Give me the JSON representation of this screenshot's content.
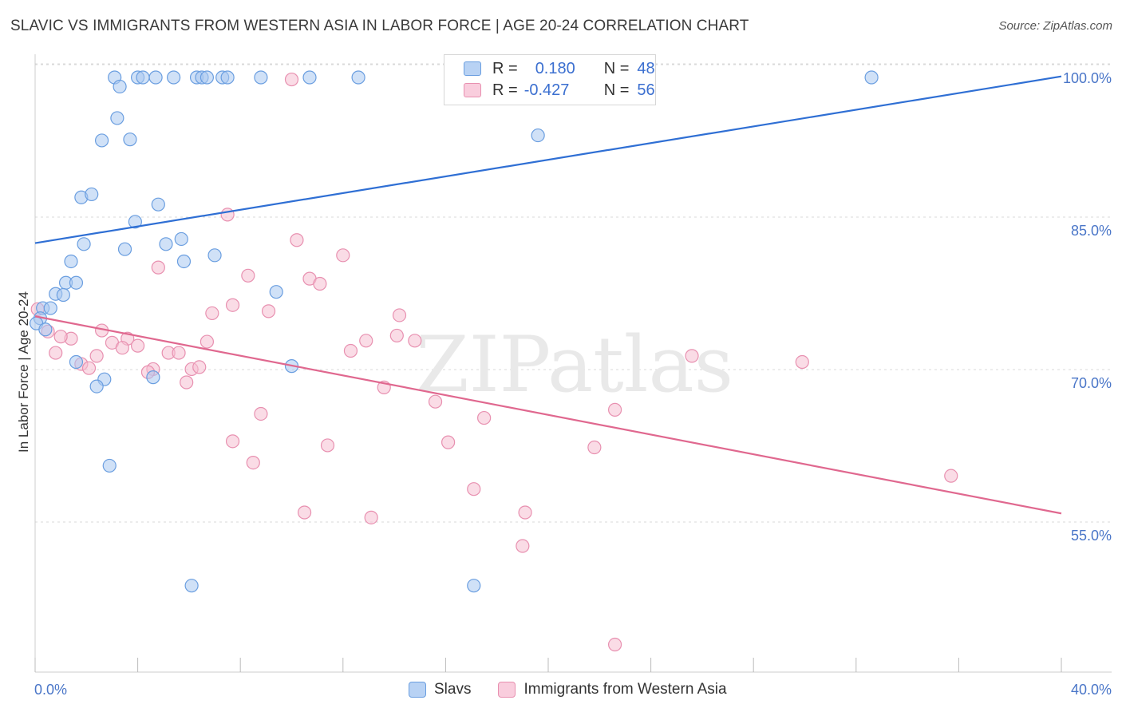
{
  "title": "SLAVIC VS IMMIGRANTS FROM WESTERN ASIA IN LABOR FORCE | AGE 20-24 CORRELATION CHART",
  "source": "Source: ZipAtlas.com",
  "watermark": "ZIPatlas",
  "legend": {
    "rows": [
      {
        "r_label": "R =",
        "r_value": "0.180",
        "n_label": "N =",
        "n_value": "48"
      },
      {
        "r_label": "R =",
        "r_value": "-0.427",
        "n_label": "N =",
        "n_value": "56"
      }
    ]
  },
  "bottom_legend": {
    "slavs": "Slavs",
    "immigrants": "Immigrants from Western Asia"
  },
  "colors": {
    "slavs_fill": "#aac8f0",
    "slavs_stroke": "#6a9ee0",
    "slavs_line": "#2f6fd4",
    "imm_fill": "#f6c0d2",
    "imm_stroke": "#e890b0",
    "imm_line": "#e0688f",
    "grid": "#d9d9d9",
    "tick_text": "#4a76c8"
  },
  "chart_data": {
    "type": "scatter",
    "title": "SLAVIC VS IMMIGRANTS FROM WESTERN ASIA IN LABOR FORCE | AGE 20-24 CORRELATION CHART",
    "xlabel": "",
    "ylabel": "In Labor Force | Age 20-24",
    "xlim": [
      0,
      40
    ],
    "ylim": [
      40,
      103
    ],
    "x_tick_labels": [
      "0.0%",
      "40.0%"
    ],
    "y_ticks": [
      55,
      70,
      85,
      100
    ],
    "y_tick_labels": [
      "55.0%",
      "70.0%",
      "85.0%",
      "100.0%"
    ],
    "series": [
      {
        "name": "Slavs",
        "r": 0.18,
        "n": 48,
        "trend": {
          "x": [
            0,
            40
          ],
          "y": [
            83.7,
            100.1
          ]
        },
        "points": [
          [
            3.1,
            100
          ],
          [
            4.0,
            100
          ],
          [
            4.2,
            100
          ],
          [
            4.7,
            100
          ],
          [
            5.4,
            100
          ],
          [
            6.3,
            100
          ],
          [
            6.5,
            100
          ],
          [
            6.7,
            100
          ],
          [
            7.3,
            100
          ],
          [
            7.5,
            100
          ],
          [
            8.8,
            100
          ],
          [
            10.7,
            100
          ],
          [
            12.6,
            100
          ],
          [
            32.6,
            100
          ],
          [
            3.3,
            99.1
          ],
          [
            3.2,
            96.0
          ],
          [
            2.6,
            93.8
          ],
          [
            3.7,
            93.9
          ],
          [
            19.6,
            94.3
          ],
          [
            1.8,
            88.2
          ],
          [
            2.2,
            88.5
          ],
          [
            4.8,
            87.5
          ],
          [
            3.9,
            85.8
          ],
          [
            1.9,
            83.6
          ],
          [
            3.5,
            83.1
          ],
          [
            5.1,
            83.6
          ],
          [
            5.7,
            84.1
          ],
          [
            5.8,
            81.9
          ],
          [
            7.0,
            82.5
          ],
          [
            1.4,
            81.9
          ],
          [
            1.2,
            79.8
          ],
          [
            1.6,
            79.8
          ],
          [
            0.8,
            78.7
          ],
          [
            1.1,
            78.6
          ],
          [
            9.4,
            78.9
          ],
          [
            0.3,
            77.3
          ],
          [
            0.6,
            77.3
          ],
          [
            0.2,
            76.3
          ],
          [
            0.05,
            75.8
          ],
          [
            10.0,
            71.6
          ],
          [
            4.6,
            70.5
          ],
          [
            2.7,
            70.3
          ],
          [
            2.4,
            69.6
          ],
          [
            2.9,
            61.8
          ],
          [
            6.1,
            50.0
          ],
          [
            17.1,
            50.0
          ],
          [
            1.6,
            72.0
          ],
          [
            0.4,
            75.2
          ]
        ]
      },
      {
        "name": "Immigrants from Western Asia",
        "r": -0.427,
        "n": 56,
        "trend": {
          "x": [
            0,
            40
          ],
          "y": [
            76.5,
            57.1
          ]
        },
        "points": [
          [
            10.0,
            99.8
          ],
          [
            7.5,
            86.5
          ],
          [
            10.2,
            84.0
          ],
          [
            12.0,
            82.5
          ],
          [
            4.8,
            81.3
          ],
          [
            8.3,
            80.5
          ],
          [
            10.7,
            80.2
          ],
          [
            11.1,
            79.7
          ],
          [
            7.7,
            77.6
          ],
          [
            6.9,
            76.8
          ],
          [
            9.1,
            77.0
          ],
          [
            14.2,
            76.6
          ],
          [
            0.1,
            77.2
          ],
          [
            0.5,
            75.0
          ],
          [
            2.6,
            75.1
          ],
          [
            1.4,
            74.3
          ],
          [
            1.0,
            74.5
          ],
          [
            3.6,
            74.3
          ],
          [
            3.0,
            73.9
          ],
          [
            4.0,
            73.6
          ],
          [
            3.4,
            73.4
          ],
          [
            6.7,
            74.0
          ],
          [
            12.9,
            74.1
          ],
          [
            14.1,
            74.6
          ],
          [
            14.8,
            74.1
          ],
          [
            0.8,
            72.9
          ],
          [
            2.4,
            72.6
          ],
          [
            5.2,
            72.9
          ],
          [
            5.6,
            72.9
          ],
          [
            12.3,
            73.1
          ],
          [
            25.6,
            72.6
          ],
          [
            29.9,
            72.0
          ],
          [
            1.8,
            71.8
          ],
          [
            2.1,
            71.4
          ],
          [
            4.6,
            71.3
          ],
          [
            4.4,
            71.0
          ],
          [
            6.1,
            71.3
          ],
          [
            6.4,
            71.5
          ],
          [
            5.9,
            70.0
          ],
          [
            13.6,
            69.5
          ],
          [
            15.6,
            68.1
          ],
          [
            17.5,
            66.5
          ],
          [
            22.6,
            67.3
          ],
          [
            8.8,
            66.9
          ],
          [
            7.7,
            64.2
          ],
          [
            11.4,
            63.8
          ],
          [
            16.1,
            64.1
          ],
          [
            21.8,
            63.6
          ],
          [
            8.5,
            62.1
          ],
          [
            35.7,
            60.8
          ],
          [
            17.1,
            59.5
          ],
          [
            10.5,
            57.2
          ],
          [
            13.1,
            56.7
          ],
          [
            19.1,
            57.2
          ],
          [
            19.0,
            53.9
          ],
          [
            22.6,
            44.2
          ]
        ]
      }
    ]
  }
}
